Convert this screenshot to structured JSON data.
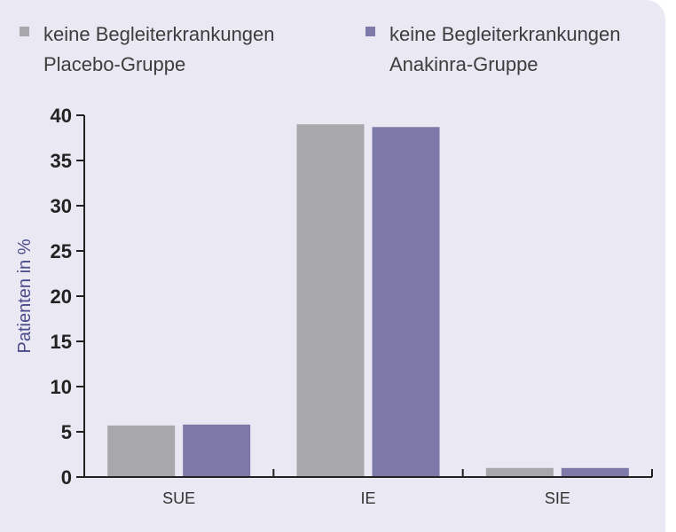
{
  "chart_data": {
    "type": "bar",
    "categories": [
      "SUE",
      "IE",
      "SIE"
    ],
    "series": [
      {
        "name": "keine Begleiterkrankungen\nPlacebo-Gruppe",
        "values": [
          5.7,
          39.0,
          1.0
        ],
        "color": "#a8a7a9"
      },
      {
        "name": "keine Begleiterkrankungen\nAnakinra-Gruppe",
        "values": [
          5.8,
          38.7,
          1.0
        ],
        "color": "#7d79a9"
      }
    ],
    "title": "",
    "xlabel": "",
    "ylabel": "Patienten in %",
    "ylim": [
      0,
      40
    ],
    "yticks": [
      0,
      5,
      10,
      15,
      20,
      25,
      30,
      35,
      40
    ],
    "grid": false,
    "legend_position": "top"
  },
  "colors": {
    "background": "#e9e8f3",
    "axis": "#222222"
  }
}
